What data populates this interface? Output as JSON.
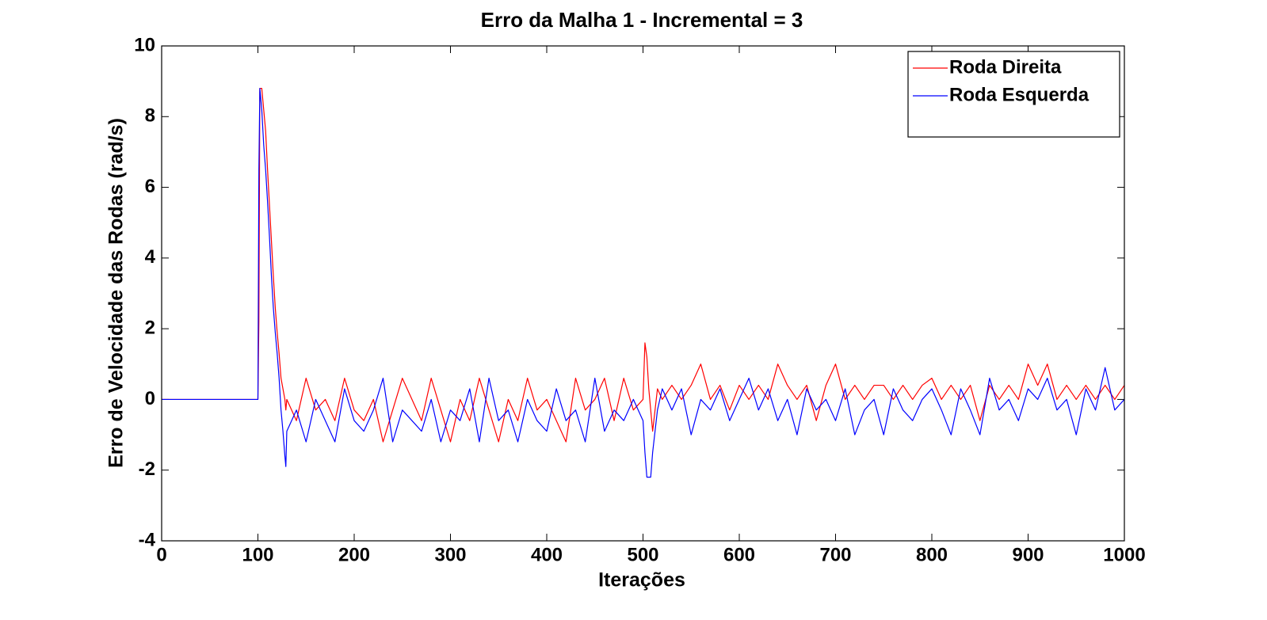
{
  "chart_data": {
    "type": "line",
    "title": "Erro da Malha 1 - Incremental = 3",
    "x_label": "Iterações",
    "y_label": "Erro de Velocidade das Rodas (rad/s)",
    "xlim": [
      0,
      1000
    ],
    "ylim": [
      -4,
      10
    ],
    "xticks": [
      0,
      100,
      200,
      300,
      400,
      500,
      600,
      700,
      800,
      900,
      1000
    ],
    "yticks": [
      -4,
      -2,
      0,
      2,
      4,
      6,
      8,
      10
    ],
    "legend": "upper right",
    "x": [
      0,
      100,
      101,
      102,
      104,
      106,
      108,
      110,
      112,
      114,
      116,
      118,
      120,
      122,
      124,
      126,
      128,
      129,
      130,
      140,
      150,
      160,
      170,
      180,
      190,
      200,
      210,
      220,
      230,
      240,
      250,
      260,
      270,
      280,
      290,
      300,
      310,
      320,
      330,
      340,
      350,
      360,
      370,
      380,
      390,
      400,
      410,
      420,
      430,
      440,
      450,
      460,
      470,
      480,
      490,
      500,
      502,
      504,
      506,
      508,
      510,
      515,
      520,
      530,
      540,
      550,
      560,
      570,
      580,
      590,
      600,
      610,
      620,
      630,
      640,
      650,
      660,
      670,
      680,
      690,
      700,
      710,
      720,
      730,
      740,
      750,
      760,
      770,
      780,
      790,
      800,
      810,
      820,
      830,
      840,
      850,
      860,
      870,
      880,
      890,
      900,
      910,
      920,
      930,
      940,
      950,
      960,
      970,
      980,
      990,
      1000
    ],
    "series": [
      {
        "name": "Roda Direita",
        "color": "#ff0000",
        "values": [
          0,
          0,
          2.2,
          8.8,
          8.8,
          8.2,
          7.6,
          6.5,
          5.5,
          4.5,
          3.5,
          2.6,
          1.9,
          1.3,
          0.6,
          0.3,
          0,
          -0.3,
          0,
          -0.6,
          0.6,
          -0.3,
          0,
          -0.6,
          0.6,
          -0.3,
          -0.6,
          0,
          -1.2,
          -0.3,
          0.6,
          0,
          -0.6,
          0.6,
          -0.3,
          -1.2,
          0,
          -0.6,
          0.6,
          -0.3,
          -1.2,
          0,
          -0.6,
          0.6,
          -0.3,
          0,
          -0.6,
          -1.2,
          0.6,
          -0.3,
          0,
          0.6,
          -0.6,
          0.6,
          -0.3,
          0,
          1.6,
          1.2,
          0.3,
          -0.3,
          -0.9,
          0.3,
          0,
          0.4,
          0,
          0.4,
          1.0,
          0,
          0.4,
          -0.3,
          0.4,
          0,
          0.4,
          0,
          1.0,
          0.4,
          0,
          0.4,
          -0.6,
          0.4,
          1.0,
          0,
          0.4,
          0,
          0.4,
          0.4,
          0,
          0.4,
          0,
          0.4,
          0.6,
          0,
          0.4,
          0,
          0.4,
          -0.6,
          0.4,
          0,
          0.4,
          0,
          1.0,
          0.4,
          1.0,
          0,
          0.4,
          0,
          0.4,
          0,
          0.4,
          0,
          0.4
        ]
      },
      {
        "name": "Roda Esquerda",
        "color": "#0000ff",
        "values": [
          0,
          0,
          6.5,
          8.8,
          8.2,
          7.2,
          6.5,
          5.6,
          4.6,
          3.5,
          2.6,
          1.9,
          1.3,
          0.6,
          -0.3,
          -0.9,
          -1.6,
          -1.9,
          -0.9,
          -0.3,
          -1.2,
          0,
          -0.6,
          -1.2,
          0.3,
          -0.6,
          -0.9,
          -0.3,
          0.6,
          -1.2,
          -0.3,
          -0.6,
          -0.9,
          0,
          -1.2,
          -0.3,
          -0.6,
          0.3,
          -1.2,
          0.6,
          -0.6,
          -0.3,
          -1.2,
          0,
          -0.6,
          -0.9,
          0.3,
          -0.6,
          -0.3,
          -1.2,
          0.6,
          -0.9,
          -0.3,
          -0.6,
          0,
          -0.6,
          -1.5,
          -2.2,
          -2.2,
          -2.2,
          -1.5,
          -0.3,
          0.3,
          -0.3,
          0.3,
          -1.0,
          0,
          -0.3,
          0.3,
          -0.6,
          0,
          0.6,
          -0.3,
          0.3,
          -0.6,
          0,
          -1.0,
          0.3,
          -0.3,
          0,
          -0.6,
          0.3,
          -1.0,
          -0.3,
          0,
          -1.0,
          0.3,
          -0.3,
          -0.6,
          0,
          0.3,
          -0.3,
          -1.0,
          0.3,
          -0.3,
          -1.0,
          0.6,
          -0.3,
          0,
          -0.6,
          0.3,
          0,
          0.6,
          -0.3,
          0,
          -1.0,
          0.3,
          -0.3,
          0.9,
          -0.3,
          0
        ]
      }
    ]
  }
}
